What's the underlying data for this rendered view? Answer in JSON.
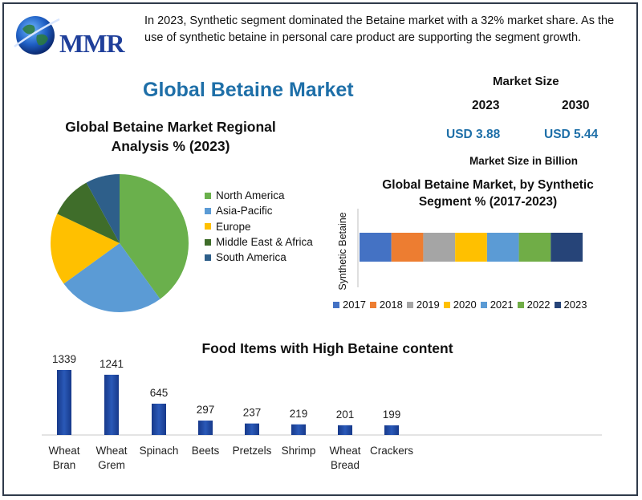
{
  "brand": {
    "logo_text": "MMR"
  },
  "intro": "In 2023, Synthetic segment dominated the Betaine market with a 32% market share. As the use of synthetic betaine in personal care product are supporting the segment growth.",
  "main_title": "Global Betaine Market",
  "market_size": {
    "title": "Market Size",
    "year_start": "2023",
    "year_end": "2030",
    "value_start": "USD 3.88",
    "value_end": "USD 5.44",
    "unit_label": "Market Size in Billion"
  },
  "colors": {
    "accent": "#1e6fa8",
    "frame": "#2f3a4a"
  },
  "chart_data": [
    {
      "type": "pie",
      "title": "Global Betaine Market Regional Analysis % (2023)",
      "labels": [
        "North America",
        "Asia-Pacific",
        "Europe",
        "Middle East & Africa",
        "South America"
      ],
      "values": [
        40,
        25,
        17,
        10,
        8
      ],
      "colors": [
        "#6ab04c",
        "#5b9bd5",
        "#ffc000",
        "#3f6d2a",
        "#2e5f8a"
      ],
      "legend_position": "right"
    },
    {
      "type": "bar",
      "orientation": "horizontal-stacked",
      "title": "Global Betaine Market, by Synthetic Segment % (2017-2023)",
      "ylabel": "Synthetic Betaine",
      "categories": [
        "Synthetic Betaine"
      ],
      "series": [
        {
          "name": "2017",
          "values": [
            1
          ],
          "color": "#4472c4"
        },
        {
          "name": "2018",
          "values": [
            1
          ],
          "color": "#ed7d31"
        },
        {
          "name": "2019",
          "values": [
            1
          ],
          "color": "#a5a5a5"
        },
        {
          "name": "2020",
          "values": [
            1
          ],
          "color": "#ffc000"
        },
        {
          "name": "2021",
          "values": [
            1
          ],
          "color": "#5b9bd5"
        },
        {
          "name": "2022",
          "values": [
            1
          ],
          "color": "#70ad47"
        },
        {
          "name": "2023",
          "values": [
            1
          ],
          "color": "#264478"
        }
      ],
      "legend_position": "bottom"
    },
    {
      "type": "bar",
      "title": "Food Items with High Betaine content",
      "categories": [
        "Wheat Bran",
        "Wheat Grem",
        "Spinach",
        "Beets",
        "Pretzels",
        "Shrimp",
        "Wheat Bread",
        "Crackers"
      ],
      "category_lines": [
        [
          "Wheat",
          "Bran"
        ],
        [
          "Wheat",
          "Grem"
        ],
        [
          "Spinach"
        ],
        [
          "Beets"
        ],
        [
          "Pretzels"
        ],
        [
          "Shrimp"
        ],
        [
          "Wheat",
          "Bread"
        ],
        [
          "Crackers"
        ]
      ],
      "values": [
        1339,
        1241,
        645,
        297,
        237,
        219,
        201,
        199
      ],
      "bar_color": "#2a59b8"
    }
  ]
}
